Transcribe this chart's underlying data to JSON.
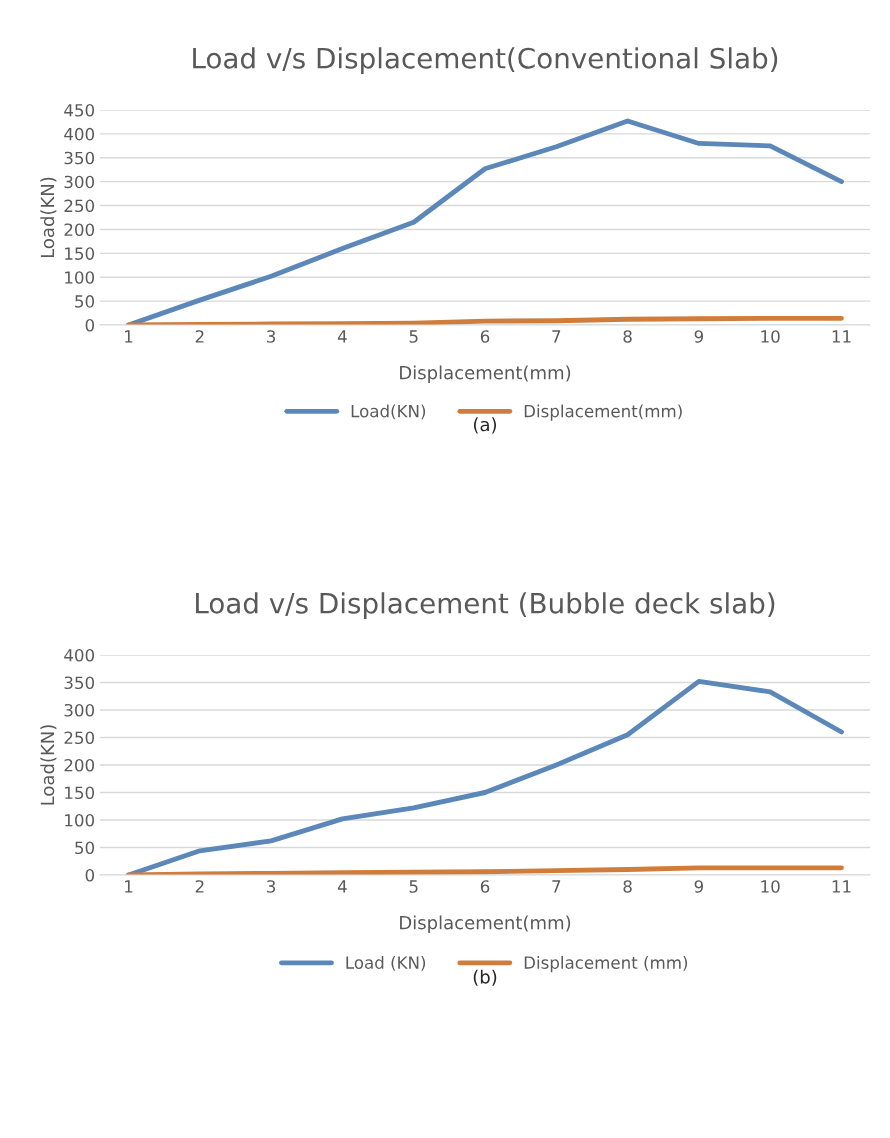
{
  "chart_data": [
    {
      "type": "line",
      "title": "Load v/s Displacement(Conventional Slab)",
      "xlabel": "Displacement(mm)",
      "ylabel": "Load(KN)",
      "categories": [
        "1",
        "2",
        "3",
        "4",
        "5",
        "6",
        "7",
        "8",
        "9",
        "10",
        "11"
      ],
      "series": [
        {
          "name": "Load(KN)",
          "color": "#5b87b9",
          "values": [
            0,
            52,
            102,
            160,
            215,
            327,
            373,
            427,
            380,
            375,
            300
          ]
        },
        {
          "name": "Displacement(mm)",
          "color": "#d07d3c",
          "values": [
            0,
            1,
            2,
            3,
            4,
            8,
            9,
            12,
            13,
            14,
            14
          ]
        }
      ],
      "ylim": [
        0,
        450
      ],
      "yticks": [
        0,
        50,
        100,
        150,
        200,
        250,
        300,
        350,
        400,
        450
      ],
      "grid": "y",
      "legend": "bottom",
      "annotations": [
        "(a)"
      ]
    },
    {
      "type": "line",
      "title": "Load v/s Displacement (Bubble deck slab)",
      "xlabel": "Displacement(mm)",
      "ylabel": "Load(KN)",
      "categories": [
        "1",
        "2",
        "3",
        "4",
        "5",
        "6",
        "7",
        "8",
        "9",
        "10",
        "11"
      ],
      "series": [
        {
          "name": "Load (KN)",
          "color": "#5b87b9",
          "values": [
            0,
            44,
            62,
            102,
            122,
            150,
            200,
            255,
            352,
            333,
            260
          ]
        },
        {
          "name": "Displacement (mm)",
          "color": "#d07d3c",
          "values": [
            0,
            2,
            3,
            4,
            5,
            6,
            8,
            10,
            13,
            13,
            13
          ]
        }
      ],
      "ylim": [
        0,
        400
      ],
      "yticks": [
        0,
        50,
        100,
        150,
        200,
        250,
        300,
        350,
        400
      ],
      "grid": "y",
      "legend": "bottom",
      "annotations": [
        "(b)"
      ]
    }
  ]
}
